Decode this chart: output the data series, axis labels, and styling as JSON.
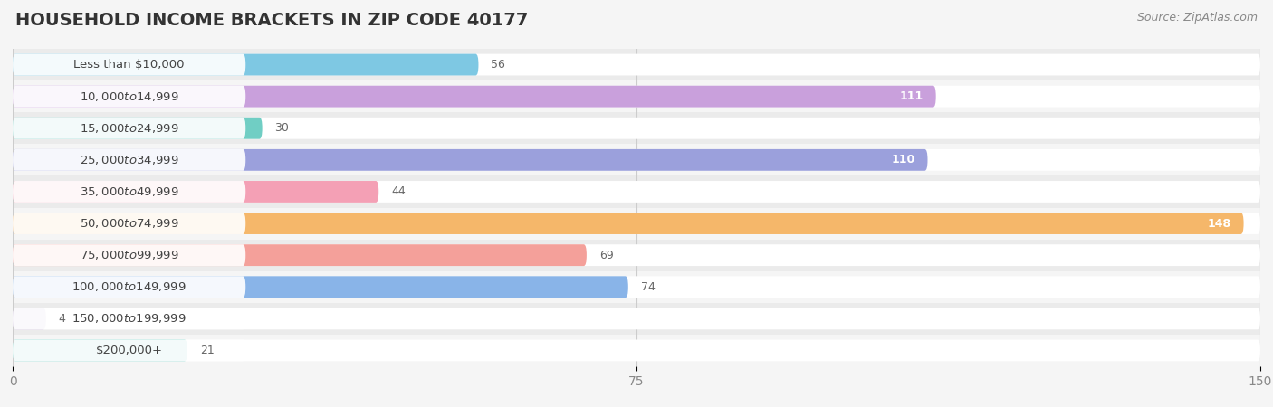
{
  "title": "HOUSEHOLD INCOME BRACKETS IN ZIP CODE 40177",
  "source": "Source: ZipAtlas.com",
  "categories": [
    "Less than $10,000",
    "$10,000 to $14,999",
    "$15,000 to $24,999",
    "$25,000 to $34,999",
    "$35,000 to $49,999",
    "$50,000 to $74,999",
    "$75,000 to $99,999",
    "$100,000 to $149,999",
    "$150,000 to $199,999",
    "$200,000+"
  ],
  "values": [
    56,
    111,
    30,
    110,
    44,
    148,
    69,
    74,
    4,
    21
  ],
  "colors": [
    "#7EC8E3",
    "#C9A0DC",
    "#70CEC4",
    "#9BA0DC",
    "#F4A0B5",
    "#F5B76A",
    "#F4A09A",
    "#89B4E8",
    "#C9B8DC",
    "#70CEC4"
  ],
  "xlim": [
    0,
    150
  ],
  "xticks": [
    0,
    75,
    150
  ],
  "background_color": "#f5f5f5",
  "title_fontsize": 14,
  "label_fontsize": 9.5,
  "value_fontsize": 9
}
